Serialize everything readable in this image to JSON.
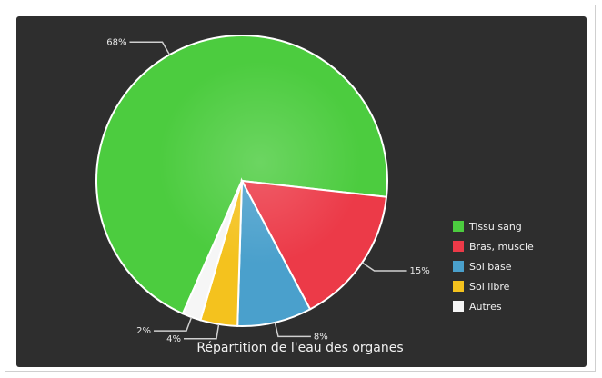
{
  "chart_data": {
    "type": "pie",
    "title": "Répartition de l'eau des organes",
    "slices": [
      {
        "label": "Tissu sang",
        "value": 68,
        "display": "68%",
        "color": "#4ccc3f"
      },
      {
        "label": "Bras, muscle",
        "value": 15,
        "display": "15%",
        "color": "#ec3a48"
      },
      {
        "label": "Sol base",
        "value": 8,
        "display": "8%",
        "color": "#4aa0cc"
      },
      {
        "label": "Sol libre",
        "value": 4,
        "display": "4%",
        "color": "#f4c21e"
      },
      {
        "label": "Autres",
        "value": 2,
        "display": "2%",
        "color": "#f6f6f6"
      }
    ],
    "legend_position": "right"
  },
  "colors": {
    "background": "#2e2e2e",
    "frame": "#ffffff",
    "leader_line": "#d0d0d0"
  }
}
